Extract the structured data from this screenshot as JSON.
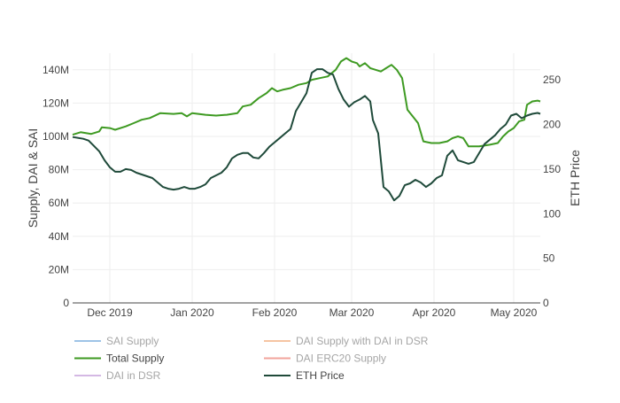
{
  "chart_data": {
    "type": "line",
    "title": "",
    "ylabel_left": "Supply, DAI & SAI",
    "ylabel_right": "ETH Price",
    "x_start": "2019-11-17",
    "x_end": "2020-05-11",
    "y_left_range": [
      0,
      150000000
    ],
    "y_right_range": [
      0,
      280
    ],
    "grid": true,
    "legend_position": "bottom",
    "x_ticks": [
      {
        "date": "2019-12-01",
        "label": "Dec 2019"
      },
      {
        "date": "2020-01-01",
        "label": "Jan 2020"
      },
      {
        "date": "2020-02-01",
        "label": "Feb 2020"
      },
      {
        "date": "2020-03-01",
        "label": "Mar 2020"
      },
      {
        "date": "2020-04-01",
        "label": "Apr 2020"
      },
      {
        "date": "2020-05-01",
        "label": "May 2020"
      }
    ],
    "y_left_ticks": [
      {
        "value": 0,
        "label": "0"
      },
      {
        "value": 20000000,
        "label": "20M"
      },
      {
        "value": 40000000,
        "label": "40M"
      },
      {
        "value": 60000000,
        "label": "60M"
      },
      {
        "value": 80000000,
        "label": "80M"
      },
      {
        "value": 100000000,
        "label": "100M"
      },
      {
        "value": 120000000,
        "label": "120M"
      },
      {
        "value": 140000000,
        "label": "140M"
      }
    ],
    "y_right_ticks": [
      {
        "value": 0,
        "label": "0"
      },
      {
        "value": 50,
        "label": "50"
      },
      {
        "value": 100,
        "label": "100"
      },
      {
        "value": 150,
        "label": "150"
      },
      {
        "value": 200,
        "label": "200"
      },
      {
        "value": 250,
        "label": "250"
      }
    ],
    "series": [
      {
        "name": "Total Supply",
        "axis": "left",
        "color": "#3e9a22",
        "points": [
          [
            "2019-11-17",
            101000000
          ],
          [
            "2019-11-20",
            102500000
          ],
          [
            "2019-11-24",
            101500000
          ],
          [
            "2019-11-27",
            103000000
          ],
          [
            "2019-11-28",
            105500000
          ],
          [
            "2019-12-01",
            105000000
          ],
          [
            "2019-12-03",
            104000000
          ],
          [
            "2019-12-07",
            106000000
          ],
          [
            "2019-12-10",
            108000000
          ],
          [
            "2019-12-13",
            110000000
          ],
          [
            "2019-12-16",
            111000000
          ],
          [
            "2019-12-20",
            114000000
          ],
          [
            "2019-12-25",
            113500000
          ],
          [
            "2019-12-28",
            114000000
          ],
          [
            "2019-12-30",
            112000000
          ],
          [
            "2020-01-01",
            114000000
          ],
          [
            "2020-01-06",
            113000000
          ],
          [
            "2020-01-10",
            112500000
          ],
          [
            "2020-01-14",
            113000000
          ],
          [
            "2020-01-18",
            114000000
          ],
          [
            "2020-01-20",
            118000000
          ],
          [
            "2020-01-23",
            119000000
          ],
          [
            "2020-01-26",
            123000000
          ],
          [
            "2020-01-29",
            126000000
          ],
          [
            "2020-01-31",
            129000000
          ],
          [
            "2020-02-02",
            127000000
          ],
          [
            "2020-02-04",
            128000000
          ],
          [
            "2020-02-07",
            129000000
          ],
          [
            "2020-02-10",
            131000000
          ],
          [
            "2020-02-13",
            132000000
          ],
          [
            "2020-02-15",
            134000000
          ],
          [
            "2020-02-18",
            135000000
          ],
          [
            "2020-02-21",
            136000000
          ],
          [
            "2020-02-24",
            140000000
          ],
          [
            "2020-02-26",
            145000000
          ],
          [
            "2020-02-28",
            147000000
          ],
          [
            "2020-03-01",
            145000000
          ],
          [
            "2020-03-03",
            144000000
          ],
          [
            "2020-03-04",
            142000000
          ],
          [
            "2020-03-06",
            144000000
          ],
          [
            "2020-03-08",
            141000000
          ],
          [
            "2020-03-10",
            140000000
          ],
          [
            "2020-03-12",
            139000000
          ],
          [
            "2020-03-14",
            141000000
          ],
          [
            "2020-03-16",
            143000000
          ],
          [
            "2020-03-18",
            140000000
          ],
          [
            "2020-03-20",
            135000000
          ],
          [
            "2020-03-22",
            116000000
          ],
          [
            "2020-03-24",
            112000000
          ],
          [
            "2020-03-26",
            108000000
          ],
          [
            "2020-03-28",
            97000000
          ],
          [
            "2020-03-31",
            96000000
          ],
          [
            "2020-04-03",
            96000000
          ],
          [
            "2020-04-06",
            97000000
          ],
          [
            "2020-04-08",
            99000000
          ],
          [
            "2020-04-10",
            100000000
          ],
          [
            "2020-04-12",
            99000000
          ],
          [
            "2020-04-14",
            94000000
          ],
          [
            "2020-04-18",
            94000000
          ],
          [
            "2020-04-22",
            95000000
          ],
          [
            "2020-04-25",
            96000000
          ],
          [
            "2020-04-27",
            100000000
          ],
          [
            "2020-04-29",
            103000000
          ],
          [
            "2020-05-01",
            105000000
          ],
          [
            "2020-05-03",
            109000000
          ],
          [
            "2020-05-05",
            110000000
          ],
          [
            "2020-05-06",
            119000000
          ],
          [
            "2020-05-08",
            121000000
          ],
          [
            "2020-05-10",
            121500000
          ],
          [
            "2020-05-11",
            121000000
          ]
        ]
      },
      {
        "name": "ETH Price",
        "axis": "right",
        "color": "#1f4a3a",
        "points": [
          [
            "2019-11-17",
            186
          ],
          [
            "2019-11-19",
            185
          ],
          [
            "2019-11-21",
            184
          ],
          [
            "2019-11-23",
            182
          ],
          [
            "2019-11-25",
            176
          ],
          [
            "2019-11-27",
            170
          ],
          [
            "2019-11-29",
            160
          ],
          [
            "2019-12-01",
            152
          ],
          [
            "2019-12-03",
            147
          ],
          [
            "2019-12-05",
            147
          ],
          [
            "2019-12-07",
            150
          ],
          [
            "2019-12-09",
            149
          ],
          [
            "2019-12-11",
            146
          ],
          [
            "2019-12-13",
            144
          ],
          [
            "2019-12-15",
            142
          ],
          [
            "2019-12-17",
            140
          ],
          [
            "2019-12-19",
            135
          ],
          [
            "2019-12-21",
            130
          ],
          [
            "2019-12-23",
            128
          ],
          [
            "2019-12-25",
            127
          ],
          [
            "2019-12-27",
            128
          ],
          [
            "2019-12-29",
            130
          ],
          [
            "2019-12-31",
            128
          ],
          [
            "2020-01-02",
            128
          ],
          [
            "2020-01-04",
            130
          ],
          [
            "2020-01-06",
            133
          ],
          [
            "2020-01-08",
            140
          ],
          [
            "2020-01-10",
            143
          ],
          [
            "2020-01-12",
            146
          ],
          [
            "2020-01-14",
            152
          ],
          [
            "2020-01-16",
            162
          ],
          [
            "2020-01-18",
            166
          ],
          [
            "2020-01-20",
            168
          ],
          [
            "2020-01-22",
            168
          ],
          [
            "2020-01-24",
            163
          ],
          [
            "2020-01-26",
            162
          ],
          [
            "2020-01-28",
            168
          ],
          [
            "2020-01-30",
            175
          ],
          [
            "2020-02-01",
            180
          ],
          [
            "2020-02-03",
            185
          ],
          [
            "2020-02-05",
            190
          ],
          [
            "2020-02-07",
            195
          ],
          [
            "2020-02-09",
            215
          ],
          [
            "2020-02-11",
            225
          ],
          [
            "2020-02-13",
            235
          ],
          [
            "2020-02-15",
            258
          ],
          [
            "2020-02-17",
            262
          ],
          [
            "2020-02-19",
            262
          ],
          [
            "2020-02-21",
            258
          ],
          [
            "2020-02-23",
            256
          ],
          [
            "2020-02-25",
            240
          ],
          [
            "2020-02-27",
            228
          ],
          [
            "2020-02-29",
            220
          ],
          [
            "2020-03-02",
            225
          ],
          [
            "2020-03-04",
            228
          ],
          [
            "2020-03-06",
            232
          ],
          [
            "2020-03-08",
            226
          ],
          [
            "2020-03-09",
            205
          ],
          [
            "2020-03-11",
            190
          ],
          [
            "2020-03-13",
            130
          ],
          [
            "2020-03-15",
            125
          ],
          [
            "2020-03-17",
            115
          ],
          [
            "2020-03-19",
            120
          ],
          [
            "2020-03-21",
            132
          ],
          [
            "2020-03-23",
            134
          ],
          [
            "2020-03-25",
            138
          ],
          [
            "2020-03-27",
            135
          ],
          [
            "2020-03-29",
            130
          ],
          [
            "2020-03-31",
            134
          ],
          [
            "2020-04-02",
            140
          ],
          [
            "2020-04-04",
            143
          ],
          [
            "2020-04-06",
            165
          ],
          [
            "2020-04-08",
            171
          ],
          [
            "2020-04-10",
            160
          ],
          [
            "2020-04-12",
            158
          ],
          [
            "2020-04-14",
            156
          ],
          [
            "2020-04-16",
            158
          ],
          [
            "2020-04-18",
            168
          ],
          [
            "2020-04-20",
            178
          ],
          [
            "2020-04-22",
            183
          ],
          [
            "2020-04-24",
            188
          ],
          [
            "2020-04-26",
            195
          ],
          [
            "2020-04-28",
            200
          ],
          [
            "2020-04-30",
            210
          ],
          [
            "2020-05-02",
            212
          ],
          [
            "2020-05-04",
            207
          ],
          [
            "2020-05-06",
            210
          ],
          [
            "2020-05-08",
            212
          ],
          [
            "2020-05-10",
            213
          ],
          [
            "2020-05-11",
            212
          ]
        ]
      }
    ],
    "legend": [
      {
        "name": "SAI Supply",
        "color": "#9ec3e6",
        "active": false
      },
      {
        "name": "DAI Supply with DAI in DSR",
        "color": "#f6c4a2",
        "active": false
      },
      {
        "name": "Total Supply",
        "color": "#3e9a22",
        "active": true
      },
      {
        "name": "DAI ERC20 Supply",
        "color": "#f2a49c",
        "active": false
      },
      {
        "name": "DAI in DSR",
        "color": "#d4b8e4",
        "active": false
      },
      {
        "name": "ETH Price",
        "color": "#1f4a3a",
        "active": true
      }
    ]
  }
}
